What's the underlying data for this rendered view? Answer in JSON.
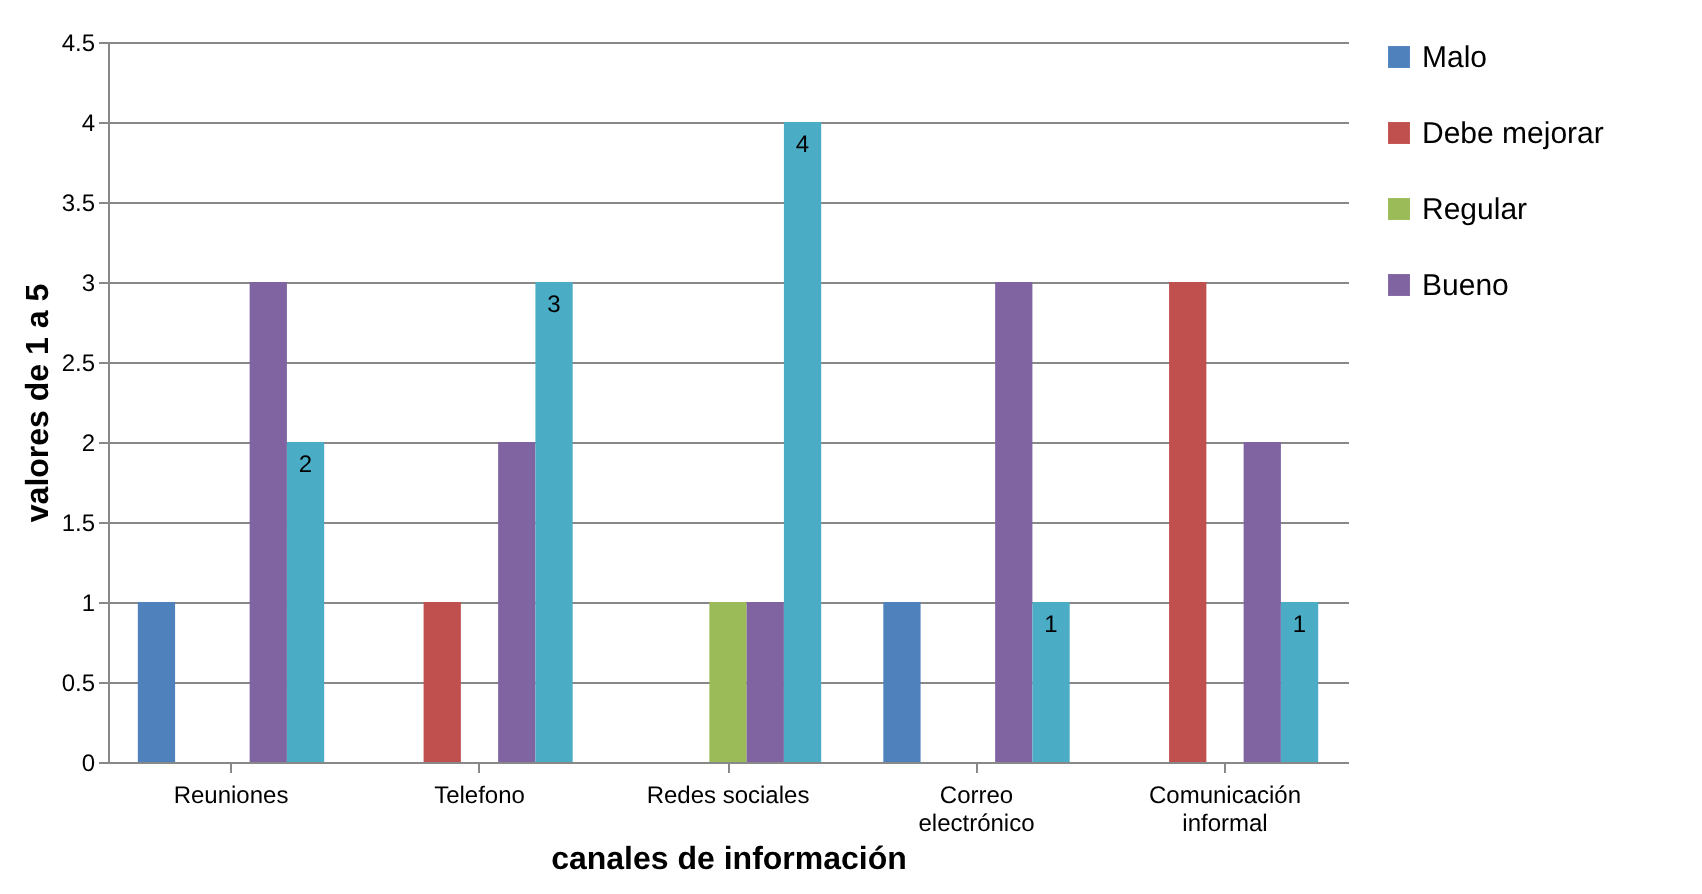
{
  "chart_data": {
    "type": "bar",
    "xlabel": "canales de información",
    "ylabel": "valores de 1 a 5",
    "categories": [
      "Reuniones",
      "Telefono",
      "Redes sociales",
      "Correo electrónico",
      "Comunicación informal"
    ],
    "series": [
      {
        "name": "Malo",
        "color": "#4f81bd",
        "values": [
          1,
          0,
          0,
          1,
          0
        ]
      },
      {
        "name": "Debe mejorar",
        "color": "#c0504d",
        "values": [
          0,
          1,
          0,
          0,
          3
        ]
      },
      {
        "name": "Regular",
        "color": "#9bbb59",
        "values": [
          0,
          0,
          1,
          0,
          0
        ]
      },
      {
        "name": "Bueno",
        "color": "#8064a2",
        "values": [
          3,
          2,
          1,
          3,
          2
        ]
      },
      {
        "color": "#4bacc6",
        "values": [
          2,
          3,
          4,
          1,
          1
        ],
        "value_labels": [
          "2",
          "3",
          "4",
          "1",
          "1"
        ]
      }
    ],
    "ylim": [
      0,
      4.5
    ],
    "yticks": [
      0,
      0.5,
      1,
      1.5,
      2,
      2.5,
      3,
      3.5,
      4,
      4.5
    ],
    "grid": "y",
    "legend": "right"
  }
}
